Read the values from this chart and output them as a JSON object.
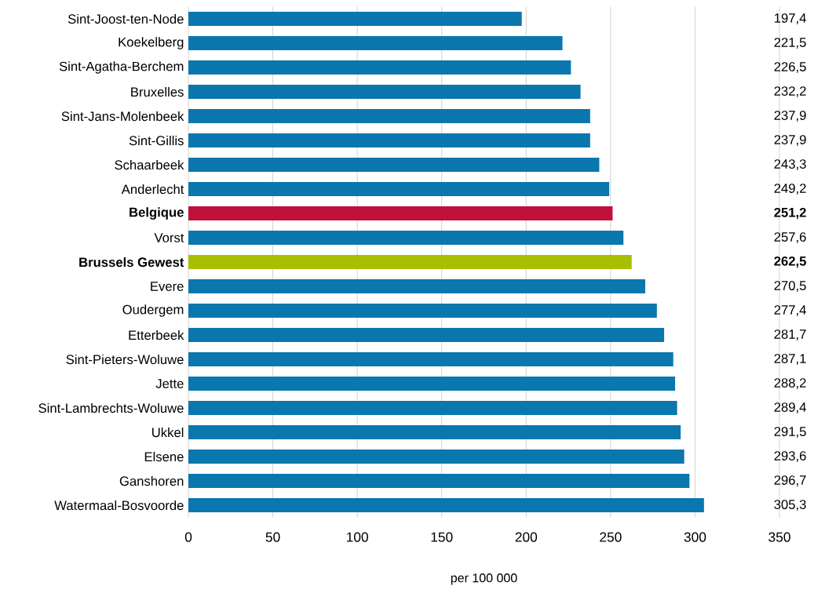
{
  "chart_data": {
    "type": "bar",
    "orientation": "horizontal",
    "xlabel": "per 100 000",
    "categories": [
      "Sint-Joost-ten-Node",
      "Koekelberg",
      "Sint-Agatha-Berchem",
      "Bruxelles",
      "Sint-Jans-Molenbeek",
      "Sint-Gillis",
      "Schaarbeek",
      "Anderlecht",
      "Belgique",
      "Vorst",
      "Brussels Gewest",
      "Evere",
      "Oudergem",
      "Etterbeek",
      "Sint-Pieters-Woluwe",
      "Jette",
      "Sint-Lambrechts-Woluwe",
      "Ukkel",
      "Elsene",
      "Ganshoren",
      "Watermaal-Bosvoorde"
    ],
    "values": [
      197.4,
      221.5,
      226.5,
      232.2,
      237.9,
      237.9,
      243.3,
      249.2,
      251.2,
      257.6,
      262.5,
      270.5,
      277.4,
      281.7,
      287.1,
      288.2,
      289.4,
      291.5,
      293.6,
      296.7,
      305.3
    ],
    "value_labels": [
      "197,4",
      "221,5",
      "226,5",
      "232,2",
      "237,9",
      "237,9",
      "243,3",
      "249,2",
      "251,2",
      "257,6",
      "262,5",
      "270,5",
      "277,4",
      "281,7",
      "287,1",
      "288,2",
      "289,4",
      "291,5",
      "293,6",
      "296,7",
      "305,3"
    ],
    "colors": [
      "#0a77ae",
      "#0a77ae",
      "#0a77ae",
      "#0a77ae",
      "#0a77ae",
      "#0a77ae",
      "#0a77ae",
      "#0a77ae",
      "#c0113b",
      "#0a77ae",
      "#a8bf00",
      "#0a77ae",
      "#0a77ae",
      "#0a77ae",
      "#0a77ae",
      "#0a77ae",
      "#0a77ae",
      "#0a77ae",
      "#0a77ae",
      "#0a77ae",
      "#0a77ae"
    ],
    "xlim": [
      0,
      350
    ],
    "xticks": [
      0,
      50,
      100,
      150,
      200,
      250,
      300,
      350
    ],
    "grid": "x"
  }
}
